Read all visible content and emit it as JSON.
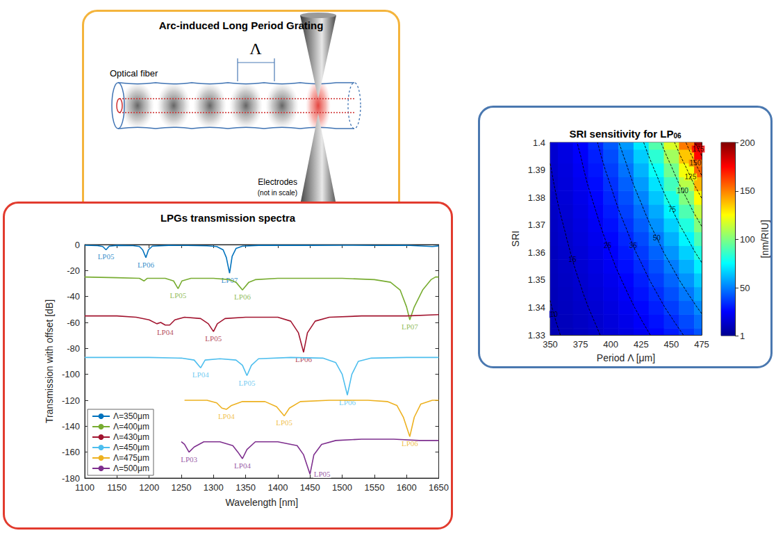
{
  "diagram": {
    "title": "Arc-induced Long Period Grating",
    "period_label": "Λ",
    "fiber_label": "Optical fiber",
    "electrodes_label": "Electrodes",
    "scale_note": "(not in scale)"
  },
  "chart_data": [
    {
      "type": "line",
      "title": "LPGs transmission spectra",
      "x_label": "Wavelength [nm]",
      "y_label": "Transmission with offset [dB]",
      "xlim": [
        1100,
        1650
      ],
      "xticks": [
        1100,
        1150,
        1200,
        1250,
        1300,
        1350,
        1400,
        1450,
        1500,
        1550,
        1600,
        1650
      ],
      "ylim": [
        -180,
        0
      ],
      "yticks": [
        -180,
        -160,
        -140,
        -120,
        -100,
        -80,
        -60,
        -40,
        -20,
        0
      ],
      "grid": false,
      "legend": "lower left",
      "series": [
        {
          "name": "Λ=350μm",
          "color": "#0072BD",
          "x": [
            1100,
            1120,
            1128,
            1133,
            1138,
            1150,
            1175,
            1185,
            1190,
            1195,
            1199,
            1205,
            1230,
            1260,
            1290,
            1305,
            1315,
            1320,
            1325,
            1329,
            1335,
            1345,
            1370,
            1400,
            1450,
            1500,
            1550,
            1600,
            1640,
            1650
          ],
          "values": [
            -0.5,
            -0.8,
            -1.5,
            -4,
            -1.2,
            -0.6,
            -0.8,
            -1.5,
            -4,
            -10,
            -4,
            -1.2,
            -0.6,
            -0.7,
            -0.9,
            -1.5,
            -4,
            -10,
            -22,
            -9,
            -3,
            -1.2,
            -0.6,
            -0.5,
            -0.6,
            -0.5,
            -0.7,
            -0.5,
            -1.5,
            -1
          ],
          "annotations": [
            {
              "text": "LP05",
              "x": 1133
            },
            {
              "text": "LP06",
              "x": 1195
            },
            {
              "text": "LP07",
              "x": 1325
            }
          ]
        },
        {
          "name": "Λ=400μm",
          "color": "#77AC30",
          "x": [
            1100,
            1150,
            1185,
            1192,
            1197,
            1225,
            1238,
            1245,
            1251,
            1265,
            1300,
            1325,
            1335,
            1345,
            1355,
            1365,
            1400,
            1450,
            1500,
            1550,
            1575,
            1590,
            1600,
            1605,
            1612,
            1625,
            1638,
            1645,
            1650
          ],
          "values": [
            -25,
            -25.5,
            -26,
            -28,
            -26,
            -26,
            -28,
            -34,
            -28,
            -26,
            -26,
            -27,
            -29,
            -35,
            -29,
            -27,
            -26,
            -26,
            -26,
            -27,
            -29,
            -35,
            -48,
            -58,
            -48,
            -35,
            -27,
            -25,
            -25
          ],
          "annotations": [
            {
              "text": "LP05",
              "x": 1245
            },
            {
              "text": "LP06",
              "x": 1345
            },
            {
              "text": "LP07",
              "x": 1605
            }
          ]
        },
        {
          "name": "Λ=430μm",
          "color": "#A2142F",
          "x": [
            1100,
            1150,
            1180,
            1200,
            1212,
            1218,
            1225,
            1232,
            1240,
            1255,
            1280,
            1292,
            1300,
            1306,
            1318,
            1350,
            1400,
            1420,
            1432,
            1440,
            1446,
            1458,
            1480,
            1530,
            1600,
            1650
          ],
          "values": [
            -55,
            -55,
            -56,
            -58,
            -61,
            -60,
            -62,
            -62,
            -58,
            -56,
            -57,
            -61,
            -67,
            -61,
            -57,
            -56,
            -56,
            -59,
            -68,
            -83,
            -68,
            -59,
            -56,
            -55,
            -55,
            -54
          ],
          "annotations": [
            {
              "text": "LP04",
              "x": 1225
            },
            {
              "text": "LP05",
              "x": 1300
            },
            {
              "text": "LP06",
              "x": 1440
            }
          ]
        },
        {
          "name": "Λ=450μm",
          "color": "#4DBEEE",
          "x": [
            1100,
            1200,
            1250,
            1270,
            1280,
            1287,
            1310,
            1335,
            1345,
            1352,
            1359,
            1370,
            1420,
            1470,
            1490,
            1500,
            1508,
            1515,
            1525,
            1545,
            1600,
            1650
          ],
          "values": [
            -87,
            -87,
            -87.5,
            -89,
            -95,
            -89,
            -88,
            -89,
            -93,
            -101,
            -93,
            -88,
            -87,
            -87.5,
            -91,
            -100,
            -116,
            -100,
            -90,
            -87.5,
            -87,
            -87
          ],
          "annotations": [
            {
              "text": "LP04",
              "x": 1280
            },
            {
              "text": "LP05",
              "x": 1352
            },
            {
              "text": "LP06",
              "x": 1508
            }
          ]
        },
        {
          "name": "Λ=475μm",
          "color": "#EDB120",
          "x": [
            1255,
            1290,
            1305,
            1313,
            1320,
            1328,
            1345,
            1380,
            1398,
            1410,
            1418,
            1435,
            1480,
            1540,
            1570,
            1585,
            1595,
            1605,
            1612,
            1622,
            1640,
            1650
          ],
          "values": [
            -120,
            -120,
            -122,
            -126,
            -127,
            -124,
            -121,
            -121,
            -125,
            -132,
            -126,
            -121,
            -120,
            -120,
            -121,
            -124,
            -133,
            -148,
            -133,
            -123,
            -120,
            -120
          ],
          "annotations": [
            {
              "text": "LP04",
              "x": 1320
            },
            {
              "text": "LP05",
              "x": 1410
            },
            {
              "text": "LP06",
              "x": 1605
            }
          ]
        },
        {
          "name": "Λ=500μm",
          "color": "#7E2F8E",
          "x": [
            1250,
            1255,
            1262,
            1270,
            1285,
            1310,
            1330,
            1338,
            1345,
            1352,
            1365,
            1400,
            1430,
            1440,
            1450,
            1456,
            1468,
            1490,
            1530,
            1580,
            1620,
            1650
          ],
          "values": [
            -152,
            -154,
            -160,
            -156,
            -152,
            -152,
            -155,
            -160,
            -165,
            -158,
            -152,
            -152,
            -155,
            -162,
            -177,
            -162,
            -154,
            -151,
            -150,
            -150,
            -151,
            -151
          ],
          "annotations": [
            {
              "text": "LP03",
              "x": 1262
            },
            {
              "text": "LP04",
              "x": 1345
            },
            {
              "text": "LP05",
              "x": 1450
            }
          ]
        }
      ]
    },
    {
      "type": "heatmap",
      "title": "SRI sensitivity for LP06",
      "x_label": "Period Λ [μm]",
      "y_label": "SRI",
      "xlim": [
        350,
        475
      ],
      "xticks": [
        350,
        375,
        400,
        425,
        450,
        475
      ],
      "ylim": [
        1.33,
        1.4
      ],
      "yticks": [
        1.33,
        1.34,
        1.35,
        1.36,
        1.37,
        1.38,
        1.39,
        1.4
      ],
      "x": [
        350,
        362.5,
        375,
        387.5,
        400,
        412.5,
        425,
        437.5,
        450,
        462.5,
        475
      ],
      "y": [
        1.33,
        1.335,
        1.34,
        1.345,
        1.35,
        1.355,
        1.36,
        1.365,
        1.37,
        1.375,
        1.38,
        1.385,
        1.39,
        1.395,
        1.4
      ],
      "values": [
        [
          9.0,
          10.5,
          12.3,
          14.3,
          16.7,
          19.5,
          22.7,
          26.5,
          30.9,
          36.1,
          42.1
        ],
        [
          9.4,
          11.0,
          13.0,
          15.2,
          17.9,
          21.0,
          24.7,
          29.0,
          34.0,
          40.0,
          47.0
        ],
        [
          9.8,
          11.6,
          13.7,
          16.2,
          19.1,
          22.6,
          26.8,
          31.7,
          37.5,
          44.3,
          52.4
        ],
        [
          10.2,
          12.1,
          14.5,
          17.2,
          20.5,
          24.4,
          29.1,
          34.6,
          41.2,
          49.1,
          58.4
        ],
        [
          10.6,
          12.7,
          15.3,
          18.3,
          21.9,
          26.3,
          31.5,
          37.8,
          45.3,
          54.4,
          65.2
        ],
        [
          11.1,
          13.4,
          16.1,
          19.5,
          23.5,
          28.4,
          34.2,
          41.3,
          49.9,
          60.2,
          72.7
        ],
        [
          11.5,
          14.0,
          17.0,
          20.7,
          25.2,
          30.6,
          37.2,
          45.2,
          54.9,
          66.7,
          81.1
        ],
        [
          12.0,
          14.7,
          18.0,
          22.0,
          26.9,
          32.9,
          40.3,
          49.3,
          60.4,
          73.9,
          90.4
        ],
        [
          12.5,
          15.4,
          19.0,
          23.4,
          28.8,
          35.5,
          43.8,
          54.0,
          66.5,
          81.9,
          101.0
        ],
        [
          13.0,
          16.2,
          20.0,
          24.9,
          30.9,
          38.3,
          47.5,
          58.9,
          73.1,
          90.7,
          112.6
        ],
        [
          13.6,
          16.9,
          21.2,
          26.4,
          33.0,
          41.3,
          51.6,
          64.4,
          80.5,
          100.5,
          125.6
        ],
        [
          14.1,
          17.8,
          22.4,
          28.1,
          35.4,
          44.5,
          56.0,
          70.4,
          88.5,
          111.4,
          140.1
        ],
        [
          14.7,
          18.6,
          23.6,
          29.9,
          37.9,
          48.0,
          60.7,
          76.9,
          97.4,
          123.4,
          156.3
        ],
        [
          15.3,
          19.5,
          24.9,
          31.8,
          40.5,
          51.7,
          65.9,
          84.0,
          107.1,
          136.6,
          174.2
        ],
        [
          16.0,
          20.5,
          26.3,
          33.8,
          43.4,
          55.7,
          71.5,
          91.8,
          117.9,
          151.4,
          194.4
        ]
      ],
      "colorbar": {
        "label": "[nm/RIU]",
        "range": [
          1,
          200
        ],
        "ticks": [
          1,
          50,
          100,
          150,
          200
        ]
      },
      "contour_levels": [
        10,
        15,
        25,
        35,
        50,
        75,
        100,
        125,
        150,
        175
      ]
    }
  ]
}
